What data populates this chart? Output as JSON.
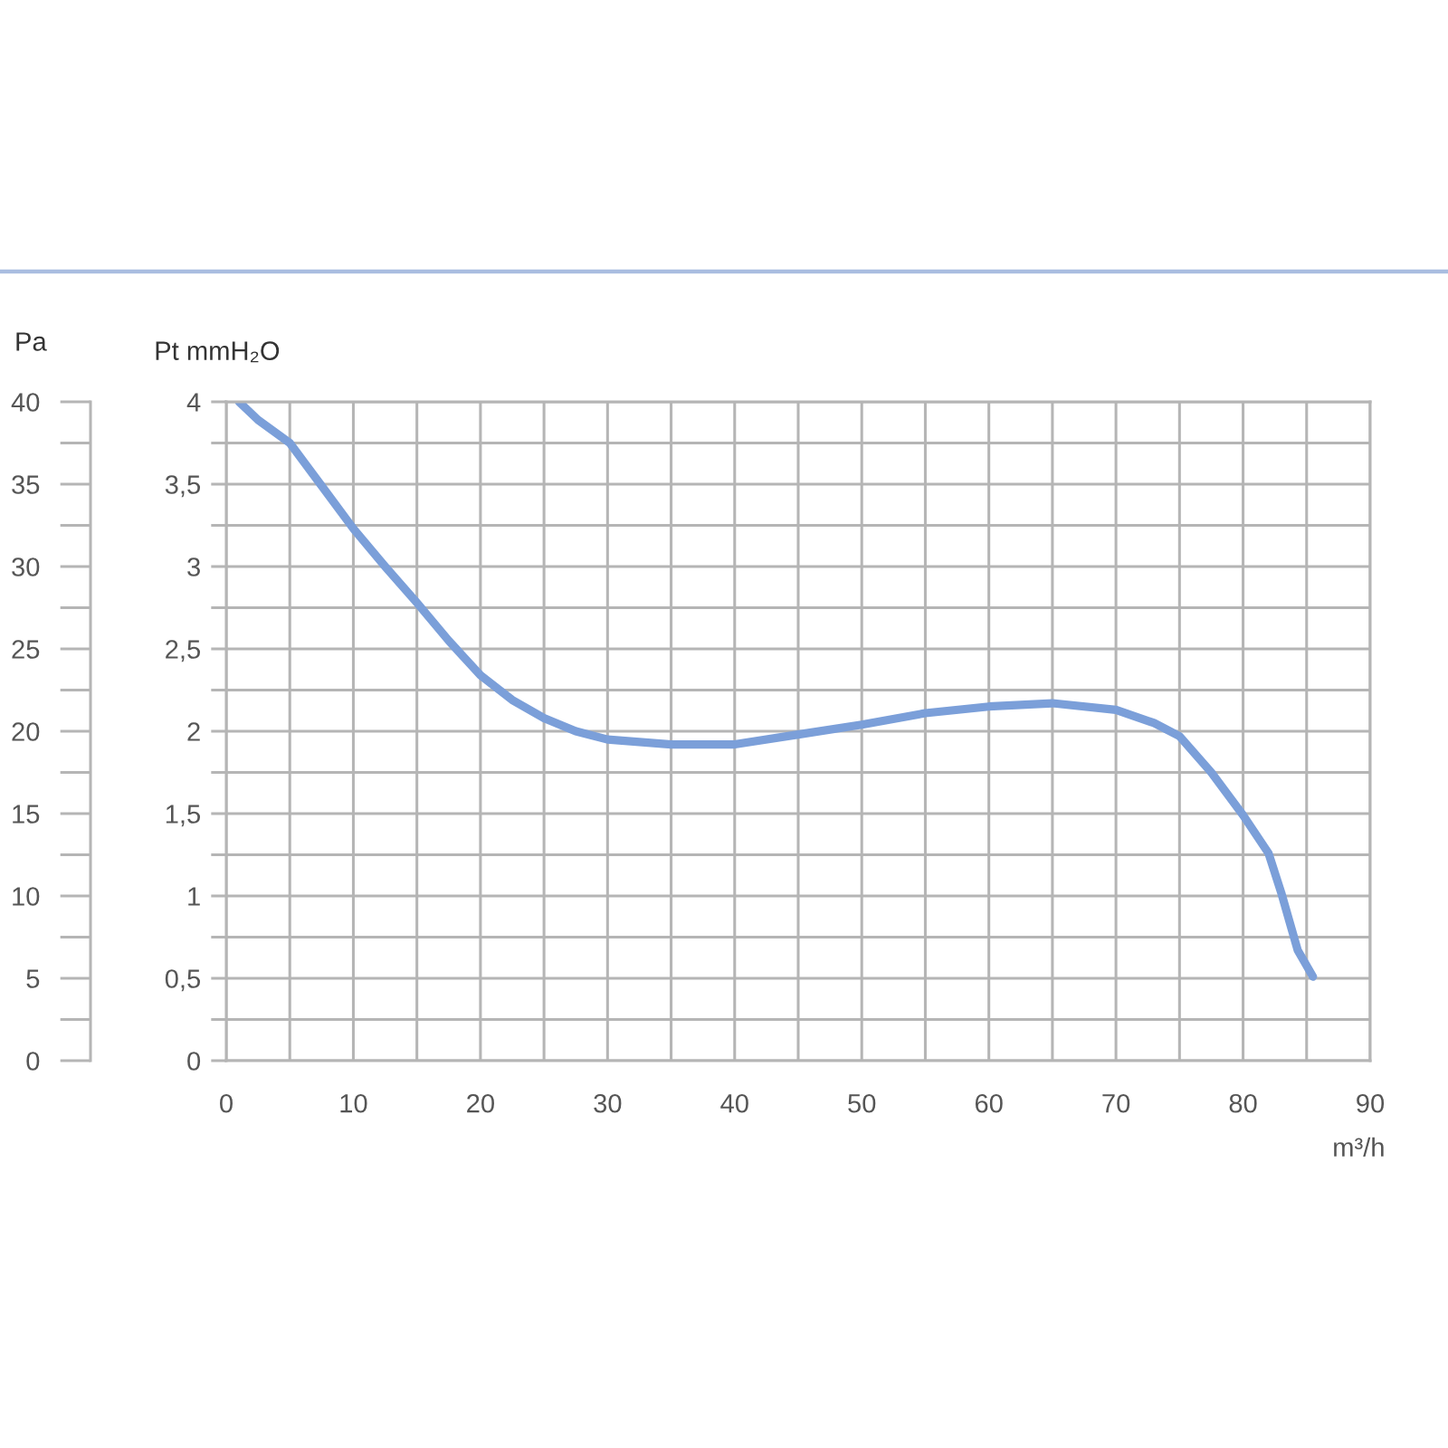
{
  "chart_data": {
    "type": "line",
    "xlabel": "m³/h",
    "ylabel": "Pt mmH₂O",
    "y2label": "Pa",
    "x": [
      1,
      2.5,
      5,
      7.5,
      10,
      12.5,
      15,
      17.5,
      20,
      22.5,
      25,
      27.5,
      30,
      35,
      40,
      45,
      50,
      55,
      60,
      65,
      70,
      73,
      75,
      77.5,
      80,
      82,
      83,
      84.3,
      85.5
    ],
    "series": [
      {
        "color": "#7b9fd9",
        "values": [
          4.0,
          3.89,
          3.75,
          3.49,
          3.23,
          3.0,
          2.78,
          2.55,
          2.34,
          2.19,
          2.08,
          2.0,
          1.95,
          1.92,
          1.92,
          1.98,
          2.04,
          2.11,
          2.15,
          2.17,
          2.13,
          2.05,
          1.97,
          1.75,
          1.49,
          1.26,
          1.02,
          0.67,
          0.51
        ]
      }
    ],
    "xlim": [
      0,
      90
    ],
    "xticks": [
      0,
      {
        "value": 5,
        "label": null
      },
      10,
      {
        "value": 15,
        "label": null
      },
      20,
      {
        "value": 25,
        "label": null
      },
      30,
      {
        "value": 35,
        "label": null
      },
      40,
      {
        "value": 45,
        "label": null
      },
      50,
      {
        "value": 55,
        "label": null
      },
      60,
      {
        "value": 65,
        "label": null
      },
      70,
      {
        "value": 75,
        "label": null
      },
      80,
      {
        "value": 85,
        "label": null
      },
      90
    ],
    "ylim": [
      0,
      4
    ],
    "yticks": [
      0,
      {
        "value": 0.25,
        "label": null
      },
      {
        "value": 0.5,
        "label": "0,5"
      },
      {
        "value": 0.75,
        "label": null
      },
      1,
      {
        "value": 1.25,
        "label": null
      },
      {
        "value": 1.5,
        "label": "1,5"
      },
      {
        "value": 1.75,
        "label": null
      },
      2,
      {
        "value": 2.25,
        "label": null
      },
      {
        "value": 2.5,
        "label": "2,5"
      },
      {
        "value": 2.75,
        "label": null
      },
      3,
      {
        "value": 3.25,
        "label": null
      },
      {
        "value": 3.5,
        "label": "3,5"
      },
      {
        "value": 3.75,
        "label": null
      },
      4
    ],
    "y2lim": [
      0,
      40
    ],
    "y2ticks": [
      0,
      {
        "value": 2.5,
        "label": null
      },
      5,
      {
        "value": 7.5,
        "label": null
      },
      10,
      {
        "value": 12.5,
        "label": null
      },
      15,
      {
        "value": 17.5,
        "label": null
      },
      20,
      {
        "value": 22.5,
        "label": null
      },
      25,
      {
        "value": 27.5,
        "label": null
      },
      30,
      {
        "value": 32.5,
        "label": null
      },
      35,
      {
        "value": 37.5,
        "label": null
      },
      40
    ],
    "grid": true
  }
}
